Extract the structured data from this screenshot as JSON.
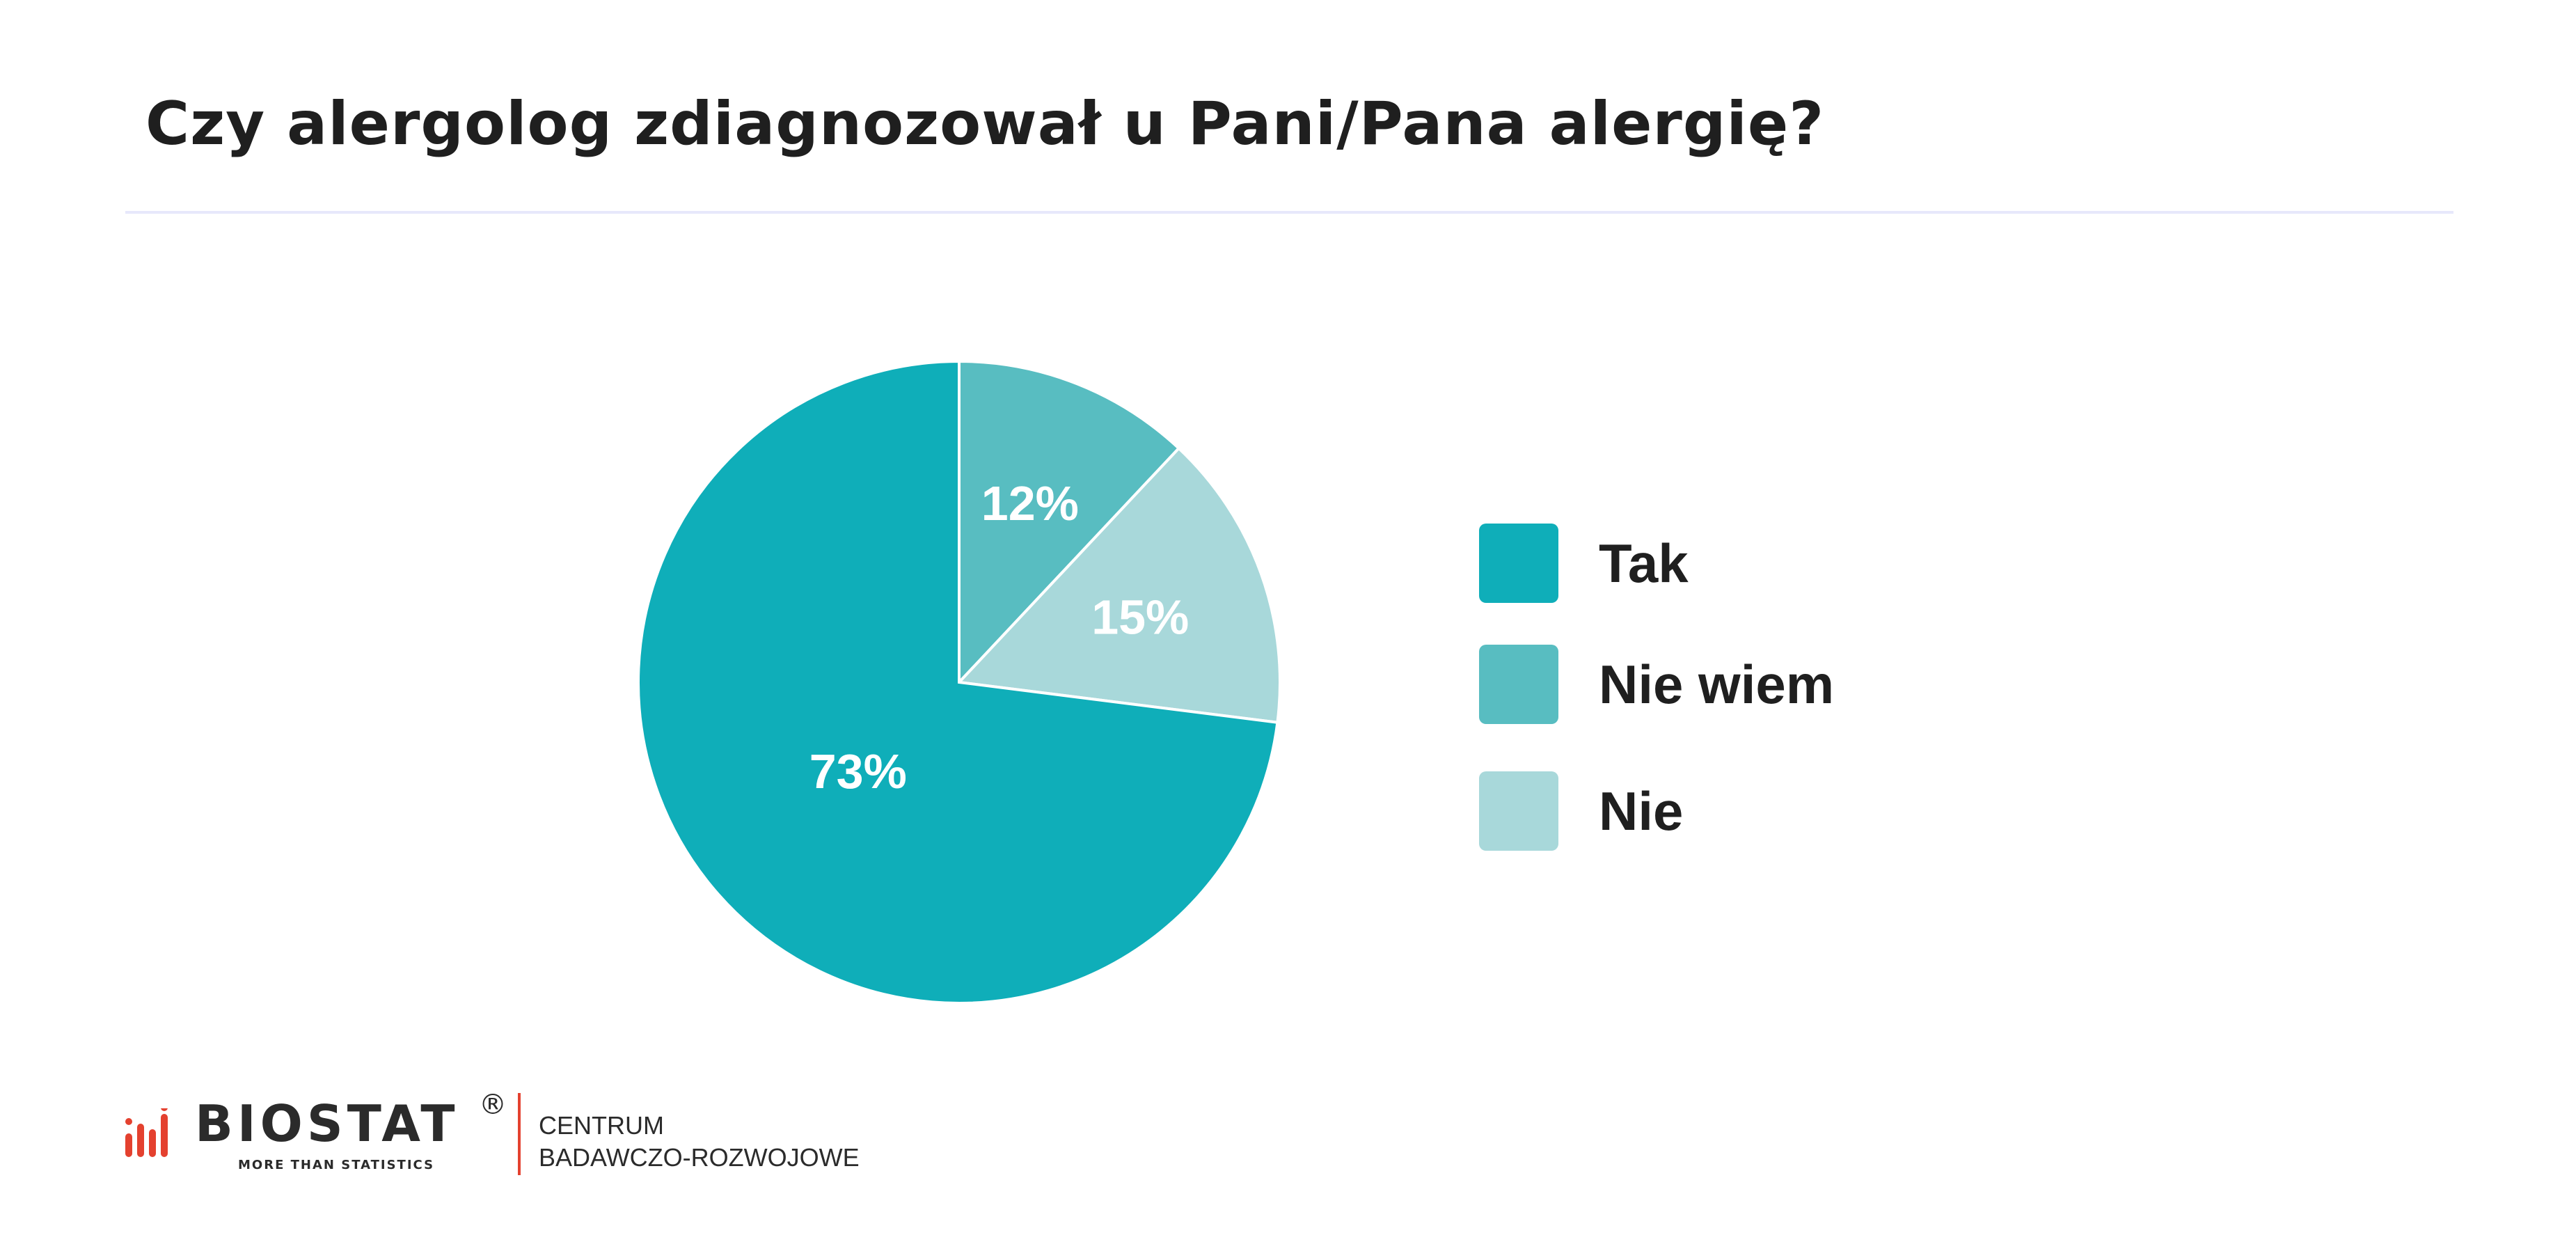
{
  "title": "Czy alergolog zdiagnozował u Pani/Pana alergię?",
  "chart_data": {
    "type": "pie",
    "title": "Czy alergolog zdiagnozował u Pani/Pana alergię?",
    "slices": [
      {
        "name": "Nie wiem",
        "value": 12,
        "label": "12%",
        "color": "#58bdc1"
      },
      {
        "name": "Nie",
        "value": 15,
        "label": "15%",
        "color": "#a8d8da"
      },
      {
        "name": "Tak",
        "value": 73,
        "label": "73%",
        "color": "#0faeb9"
      }
    ],
    "start_angle_deg": 0,
    "direction": "clockwise",
    "legend": {
      "position": "right",
      "entries": [
        {
          "label": "Tak",
          "color": "#0faeb9"
        },
        {
          "label": "Nie wiem",
          "color": "#58bdc1"
        },
        {
          "label": "Nie",
          "color": "#a8d8da"
        }
      ]
    }
  },
  "logo": {
    "name": "BIOSTAT",
    "registered": "®",
    "tagline": "MORE THAN STATISTICS",
    "sub_line1": "CENTRUM",
    "sub_line2": "BADAWCZO-ROZWOJOWE",
    "accent_color": "#e4412f"
  }
}
